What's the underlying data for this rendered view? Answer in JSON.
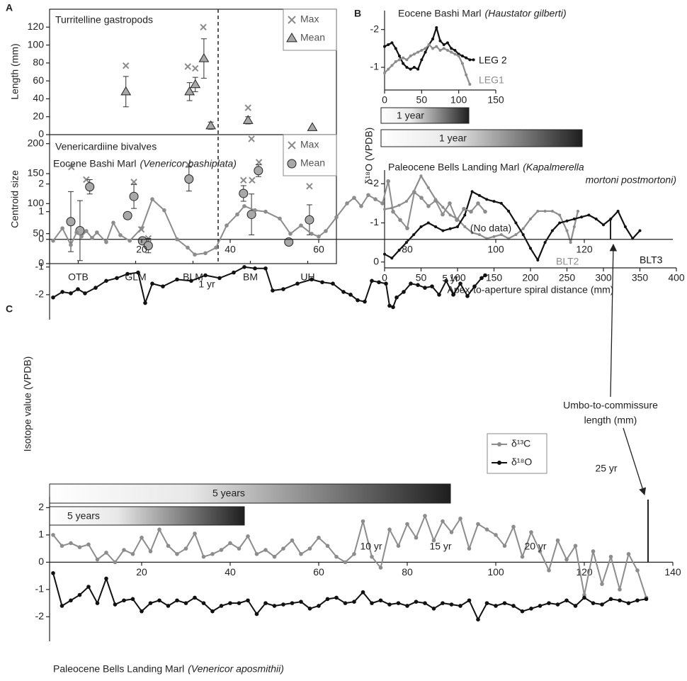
{
  "chart_data": [
    {
      "type": "scatter",
      "panel": "A",
      "title": "Turritelline gastropods",
      "ylabel": "Length (mm)",
      "xlim": [
        0.5,
        5.5
      ],
      "ylim": [
        0,
        140
      ],
      "yticks": [
        0,
        20,
        40,
        60,
        80,
        100,
        120
      ],
      "legend": "upper right",
      "series": [
        {
          "name": "Max",
          "color": "#8a8a8a",
          "marker": "x",
          "x": [
            1.83,
            2.91,
            3.04,
            3.18,
            3.96
          ],
          "values": [
            77,
            76,
            74,
            120,
            30
          ]
        },
        {
          "name": "Mean",
          "color": "#a8a8a8",
          "marker": "triangle",
          "x": [
            1.83,
            2.94,
            3.04,
            3.19,
            3.31,
            3.96,
            5.08
          ],
          "values": [
            48,
            48,
            56,
            85,
            10,
            16,
            8
          ],
          "errors": [
            17,
            10,
            8,
            22,
            4,
            4,
            null
          ]
        }
      ]
    },
    {
      "type": "scatter",
      "title": "Venericardiine bivalves",
      "ylabel": "Centroid size",
      "xlim": [
        0.5,
        5.5
      ],
      "ylim": [
        0,
        215
      ],
      "yticks": [
        0,
        50,
        100,
        150,
        200
      ],
      "legend": "upper right",
      "xticks": [
        {
          "value": 1,
          "label": "OTB"
        },
        {
          "value": 2,
          "label": "GLM"
        },
        {
          "value": 3,
          "label": "BLM"
        },
        {
          "value": 4,
          "label": "BM"
        },
        {
          "value": 5,
          "label": "UH"
        }
      ],
      "series": [
        {
          "name": "Max",
          "color": "#8a8a8a",
          "marker": "x",
          "x": [
            0.88,
            1.14,
            1.97,
            2.1,
            2.22,
            2.92,
            3.88,
            4.02,
            4.03,
            4.15,
            5.03
          ],
          "values": [
            161,
            140,
            136,
            57,
            42,
            165,
            139,
            208,
            139,
            169,
            129
          ]
        },
        {
          "name": "Mean",
          "color": "#a8a8a8",
          "marker": "circle",
          "x": [
            0.87,
            1.03,
            1.2,
            1.86,
            1.97,
            2.12,
            2.22,
            2.93,
            3.88,
            4.02,
            4.14,
            4.67,
            5.03
          ],
          "values": [
            70,
            55,
            128,
            80,
            112,
            38,
            30,
            141,
            117,
            82,
            155,
            36,
            73
          ],
          "errors": [
            50,
            50,
            12,
            null,
            20,
            null,
            12,
            20,
            13,
            34,
            10,
            null,
            25
          ]
        }
      ]
    },
    {
      "type": "line",
      "panel": "B",
      "title": "Eocene Bashi Marl",
      "species": "(Haustator gilberti)",
      "ylabel": "δ¹⁸O (VPDB)",
      "scale_bar": "1 year",
      "xlim": [
        0,
        150
      ],
      "xticks": [
        0,
        50,
        100,
        150
      ],
      "ylim": [
        -0.4,
        -2.5
      ],
      "yticks": [
        -2,
        -1
      ],
      "series": [
        {
          "name": "LEG 2",
          "color": "#111111",
          "x": [
            0,
            5,
            10,
            15,
            20,
            25,
            30,
            35,
            40,
            45,
            50,
            55,
            60,
            65,
            70,
            75,
            80,
            85,
            90,
            95,
            100,
            105,
            110,
            115,
            120
          ],
          "values": [
            -1.55,
            -1.6,
            -1.65,
            -1.5,
            -1.3,
            -1.1,
            -1.0,
            -0.95,
            -1.0,
            -0.95,
            -1.2,
            -1.4,
            -1.6,
            -1.75,
            -2.05,
            -1.7,
            -1.6,
            -1.65,
            -1.5,
            -1.45,
            -1.35,
            -1.3,
            -1.25,
            -1.2,
            -1.2
          ]
        },
        {
          "name": "LEG1",
          "color": "#8c8c8c",
          "x": [
            0,
            5,
            10,
            15,
            20,
            25,
            30,
            35,
            40,
            45,
            50,
            55,
            60,
            65,
            70,
            75,
            80,
            85,
            90,
            95,
            100,
            105,
            110,
            115
          ],
          "values": [
            -0.85,
            -0.95,
            -1.05,
            -1.15,
            -1.2,
            -1.25,
            -1.2,
            -1.3,
            -1.35,
            -1.4,
            -1.45,
            -1.5,
            -1.6,
            -1.5,
            -1.55,
            -1.45,
            -1.5,
            -1.45,
            -1.4,
            -1.35,
            -1.3,
            -1.1,
            -0.8,
            -0.55
          ]
        }
      ]
    },
    {
      "type": "line",
      "title": "Paleocene Bells Landing Marl",
      "species": [
        "(Kapalmerella",
        "mortoni postmortoni)"
      ],
      "xlabel": "Apex-to-aperture spiral distance (mm)",
      "scale_bar": "1 year",
      "xlim": [
        0,
        400
      ],
      "xticks": [
        0,
        50,
        100,
        150,
        200,
        250,
        300,
        350,
        400
      ],
      "ylim": [
        0.15,
        -2.35
      ],
      "yticks": [
        0,
        -1,
        -2
      ],
      "series": [
        {
          "name": "BLT2",
          "color": "#8c8c8c",
          "x": [
            0,
            10,
            20,
            30,
            40,
            50,
            60,
            70,
            80,
            90,
            100,
            110,
            120,
            130,
            140,
            150,
            160,
            170,
            180,
            190,
            200,
            210,
            220,
            230,
            240,
            250,
            255,
            260,
            265
          ],
          "values": [
            -1.35,
            -1.38,
            -1.45,
            -1.55,
            -1.8,
            -2.2,
            -1.9,
            -1.6,
            -1.4,
            -1.2,
            -1.1,
            -0.9,
            -0.75,
            -0.7,
            -0.6,
            -0.65,
            -0.7,
            -0.6,
            -0.7,
            -0.85,
            -1.1,
            -1.3,
            -1.3,
            -1.3,
            -1.2,
            -0.8,
            -0.5,
            -0.9,
            -1.3
          ]
        },
        {
          "name": "BLT3",
          "color": "#111111",
          "x": [
            0,
            10,
            20,
            30,
            40,
            50,
            60,
            70,
            80,
            90,
            100,
            110,
            120,
            130,
            140,
            150,
            160,
            170,
            180,
            190,
            200,
            210,
            220,
            230,
            240,
            250,
            260,
            270,
            280,
            290,
            300,
            310,
            320,
            330,
            340,
            350
          ],
          "values": [
            -0.2,
            -0.1,
            -0.3,
            -0.5,
            -0.7,
            -0.9,
            -1.0,
            -0.9,
            -0.8,
            -0.85,
            -0.9,
            -1.2,
            -1.8,
            -1.7,
            -1.6,
            -1.55,
            -1.5,
            -1.3,
            -1.0,
            -0.7,
            -0.35,
            -0.05,
            -0.5,
            -0.8,
            -1.0,
            -1.05,
            -1.1,
            -1.15,
            -1.2,
            -1.1,
            -0.95,
            -1.1,
            -1.3,
            -0.9,
            -0.6,
            -0.8
          ]
        }
      ]
    },
    {
      "type": "line",
      "panel": "C",
      "title": "Eocene Bashi Marl",
      "species": "(Venericor bashiplata)",
      "ylabel": "Isotope value (VPDB)",
      "scale_bar": "5 years",
      "legend": "right",
      "note": [
        "Umbo-to-commissure",
        "length (mm)"
      ],
      "annotations": [
        "1 yr",
        "5 yr",
        "(No data)"
      ],
      "xlim": [
        0,
        140
      ],
      "xticks": [
        20,
        40,
        60,
        80,
        100,
        120
      ],
      "ylim": [
        -2.9,
        2.4
      ],
      "yticks": [
        -2,
        -1,
        0,
        1,
        2
      ],
      "series": [
        {
          "name": "δ¹³C",
          "color": "#8c8c8c",
          "x": [
            0,
            2.1,
            4,
            5.3,
            6.4,
            7.5,
            8.8,
            9.9,
            12,
            13.6,
            15.2,
            17.3,
            20,
            22.4,
            25.1,
            28,
            30.4,
            32,
            34.4,
            36.8,
            39.2,
            41.6,
            43.2,
            45.6,
            48,
            51.2,
            53.6,
            56,
            58.4,
            60,
            61.6,
            64,
            66.4,
            68,
            69.6,
            71.2,
            72.8,
            74.4,
            75.7,
            76.8,
            78.4,
            80,
            81.6,
            83.2,
            84.8,
            86.4,
            88,
            89.6,
            91.2,
            92.8,
            94.4,
            96,
            97.6
          ],
          "values": [
            -0.05,
            0.4,
            -0.2,
            0.25,
            0.1,
            0.3,
            0.05,
            0.25,
            -0.1,
            0.6,
            0.15,
            -0.05,
            0.4,
            1.45,
            1.05,
            0,
            -0.3,
            -0.55,
            -0.5,
            -0.3,
            0.5,
            0.9,
            1.2,
            1.05,
            1.0,
            0.75,
            0.2,
            0.5,
            0.2,
            0.1,
            0.3,
            0.8,
            1.3,
            1.5,
            1.2,
            1.6,
            1.45,
            1.3,
            2.1,
            1.0,
            0.7,
            0.4,
            1.7,
            1.5,
            1.2,
            1.4,
            0.9,
            1.3,
            0.7,
            1.1,
            1.0,
            1.3,
            1.0
          ]
        },
        {
          "name": "δ¹⁸O",
          "color": "#111111",
          "x": [
            0,
            2.1,
            4,
            5.6,
            7.2,
            9.6,
            12,
            14.4,
            16.8,
            19.2,
            20.8,
            22.4,
            24.8,
            28,
            31.2,
            34.4,
            37.6,
            40.8,
            43.2,
            45.6,
            48,
            49.6,
            52,
            55.2,
            58.4,
            60.8,
            63.2,
            65.6,
            67.2,
            68.8,
            70.4,
            72,
            73.6,
            75.2,
            76,
            76.8,
            77.6,
            79.2,
            80.8,
            82.4,
            84,
            85.6,
            87.2,
            88.8,
            90.4,
            92,
            93.6,
            95.2,
            96.8,
            97.6
          ],
          "values": [
            -2.1,
            -1.9,
            -1.95,
            -1.8,
            -1.95,
            -1.75,
            -1.5,
            -1.4,
            -1.25,
            -1.2,
            -2.3,
            -1.6,
            -1.7,
            -1.45,
            -1.5,
            -1.3,
            -1.4,
            -1.2,
            -1.0,
            -1.05,
            -1.05,
            -1.85,
            -1.8,
            -1.6,
            -1.45,
            -1.55,
            -1.6,
            -1.9,
            -2.0,
            -2.2,
            -2.25,
            -1.5,
            -1.55,
            -1.6,
            -2.4,
            -2.45,
            -2.1,
            -1.9,
            -1.6,
            -1.65,
            -1.75,
            -1.7,
            -2.0,
            -1.5,
            -2.0,
            -1.6,
            -2.05,
            -1.7,
            -1.4,
            -1.3
          ]
        }
      ]
    },
    {
      "type": "line",
      "title": "Paleocene Bells Landing Marl",
      "species": "(Venericor aposmithii)",
      "scale_bar": "5 years",
      "annotations": [
        "25 yr",
        "10 yr",
        "15 yr",
        "20 yr"
      ],
      "xlim": [
        0,
        140
      ],
      "xticks": [
        20,
        40,
        60,
        80,
        100,
        120,
        140
      ],
      "ylim": [
        -2.9,
        2.4
      ],
      "yticks": [
        -2,
        -1,
        0,
        1,
        2
      ],
      "series": [
        {
          "color": "#8c8c8c",
          "x": [
            0,
            2,
            4,
            6,
            8,
            10,
            12,
            14,
            16,
            18,
            20,
            22,
            24,
            26,
            28,
            30,
            32,
            34,
            36,
            38,
            40,
            42,
            44,
            46,
            48,
            50,
            52,
            54,
            56,
            58,
            60,
            62,
            64,
            66,
            68,
            70,
            72,
            74,
            76,
            78,
            80,
            82,
            84,
            86,
            88,
            90,
            92,
            94,
            96,
            98,
            100,
            102,
            104,
            106,
            108,
            110,
            112,
            114,
            116,
            118,
            120,
            122,
            124,
            126,
            128,
            130,
            132,
            134
          ],
          "values": [
            1.0,
            0.6,
            0.7,
            0.55,
            0.65,
            0.1,
            0.35,
            0.0,
            0.45,
            0.3,
            0.9,
            0.4,
            1.2,
            0.6,
            0.3,
            0.5,
            1.05,
            0.2,
            0.3,
            0.45,
            0.7,
            0.5,
            0.95,
            0.3,
            0.45,
            0.2,
            0.5,
            0.8,
            0.3,
            0.5,
            0.9,
            0.6,
            0.2,
            0.0,
            0.3,
            1.5,
            0.2,
            -0.2,
            1.2,
            0.6,
            1.4,
            0.9,
            1.7,
            0.8,
            1.5,
            1.1,
            1.6,
            0.5,
            1.4,
            1.2,
            1.0,
            0.6,
            1.3,
            0.2,
            1.1,
            0.4,
            -0.3,
            0.8,
            0.1,
            0.6,
            -1.2,
            0.4,
            -0.8,
            0.2,
            -1.0,
            0.3,
            -0.3,
            -1.3
          ]
        },
        {
          "color": "#111111",
          "x": [
            0,
            2,
            4,
            6,
            8,
            10,
            12,
            14,
            16,
            18,
            20,
            22,
            24,
            26,
            28,
            30,
            32,
            34,
            36,
            38,
            40,
            42,
            44,
            46,
            48,
            50,
            52,
            54,
            56,
            58,
            60,
            62,
            64,
            66,
            68,
            70,
            72,
            74,
            76,
            78,
            80,
            82,
            84,
            86,
            88,
            90,
            92,
            94,
            96,
            98,
            100,
            102,
            104,
            106,
            108,
            110,
            112,
            114,
            116,
            118,
            120,
            122,
            124,
            126,
            128,
            130,
            132,
            134
          ],
          "values": [
            -0.4,
            -1.6,
            -1.4,
            -1.2,
            -0.9,
            -1.5,
            -0.6,
            -1.55,
            -1.4,
            -1.35,
            -1.8,
            -1.5,
            -1.4,
            -1.6,
            -1.4,
            -1.5,
            -1.3,
            -1.5,
            -1.8,
            -1.6,
            -1.5,
            -1.5,
            -1.4,
            -1.9,
            -1.5,
            -1.6,
            -1.55,
            -1.5,
            -1.45,
            -1.7,
            -1.6,
            -1.35,
            -1.3,
            -1.5,
            -1.45,
            -1.1,
            -1.5,
            -1.4,
            -1.55,
            -1.5,
            -1.6,
            -1.45,
            -1.5,
            -1.7,
            -1.5,
            -1.55,
            -1.6,
            -1.4,
            -2.1,
            -1.5,
            -1.6,
            -1.5,
            -1.6,
            -1.8,
            -1.7,
            -1.6,
            -1.5,
            -1.55,
            -1.4,
            -1.6,
            -1.3,
            -1.5,
            -1.55,
            -1.35,
            -1.4,
            -1.5,
            -1.4,
            -1.35
          ]
        }
      ]
    }
  ]
}
